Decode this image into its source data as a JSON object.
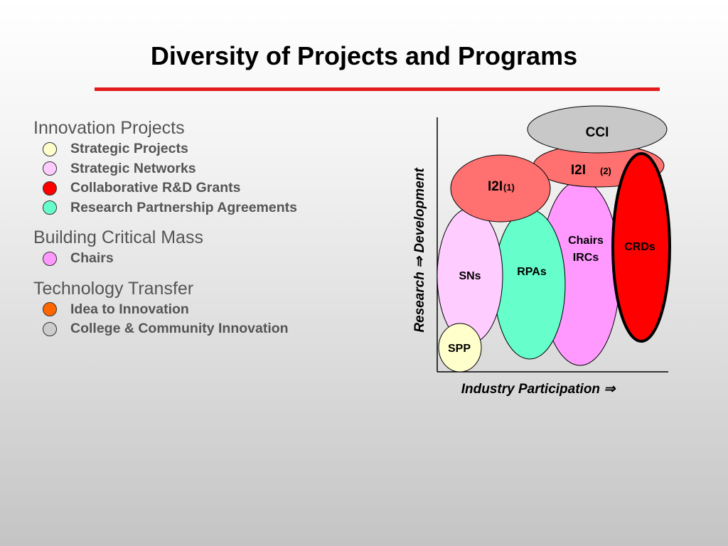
{
  "title": "Diversity of Projects and Programs",
  "colors": {
    "title_rule": "#e31b1b",
    "strategic_projects": "#ffffcc",
    "strategic_networks": "#ffccff",
    "collaborative_grants": "#ff0000",
    "rpa": "#66ffcc",
    "chairs": "#ff99ff",
    "idea_to_innovation": "#ff6600",
    "college_community": "#cccccc",
    "i2i": "#ff7070",
    "cci": "#c8c8c8"
  },
  "legend": {
    "groups": [
      {
        "heading": "Innovation Projects",
        "items": [
          {
            "label": "Strategic Projects",
            "color": "#ffffcc"
          },
          {
            "label": "Strategic Networks",
            "color": "#ffccff"
          },
          {
            "label": "Collaborative R&D Grants",
            "color": "#ff0000"
          },
          {
            "label": "Research Partnership Agreements",
            "color": "#66ffcc"
          }
        ]
      },
      {
        "heading": "Building Critical Mass",
        "items": [
          {
            "label": "Chairs",
            "color": "#ff99ff"
          }
        ]
      },
      {
        "heading": "Technology Transfer",
        "items": [
          {
            "label": "Idea to Innovation",
            "color": "#ff6600"
          },
          {
            "label": "College & Community Innovation",
            "color": "#cccccc"
          }
        ]
      }
    ]
  },
  "diagram": {
    "y_axis_label": "Research ⇒ Development",
    "x_axis_label": "Industry Participation ⇒",
    "bubbles": {
      "cci": "CCI",
      "i2i_2": "I2I",
      "i2i_2_note": "(2)",
      "i2i_1": "I2I",
      "i2i_1_note": "(1)",
      "chairs": "Chairs",
      "ircs": "IRCs",
      "crds": "CRDs",
      "sns": "SNs",
      "rpas": "RPAs",
      "spp": "SPP"
    }
  }
}
